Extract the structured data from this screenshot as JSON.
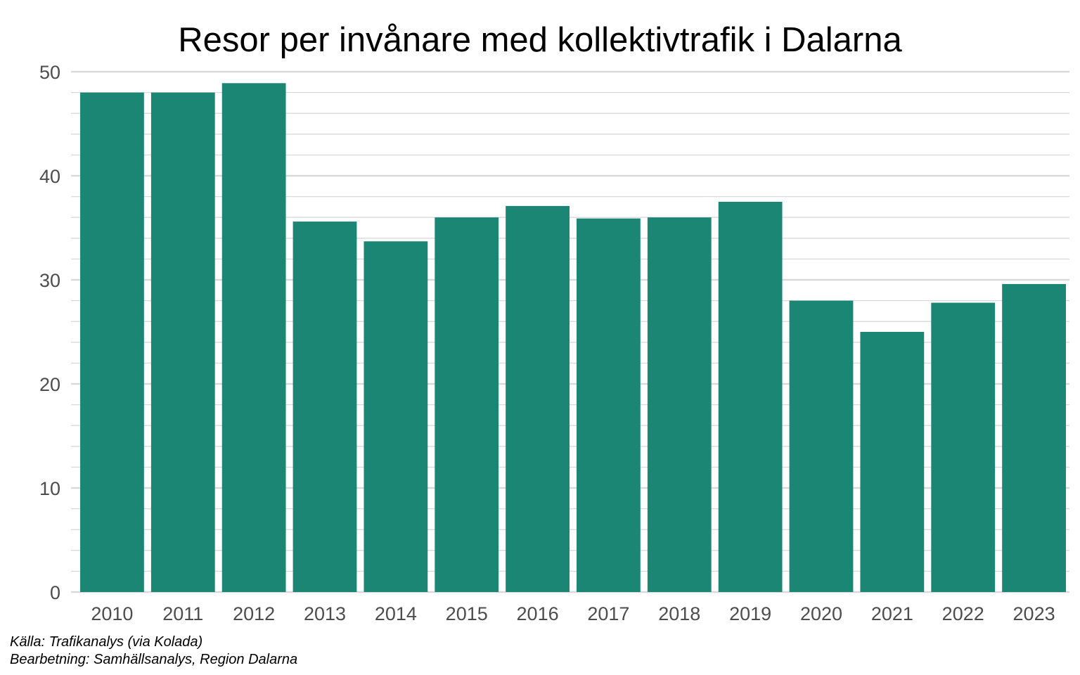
{
  "chart_data": {
    "type": "bar",
    "title": "Resor per invånare med kollektivtrafik i Dalarna",
    "xlabel": "",
    "ylabel": "",
    "categories": [
      "2010",
      "2011",
      "2012",
      "2013",
      "2014",
      "2015",
      "2016",
      "2017",
      "2018",
      "2019",
      "2020",
      "2021",
      "2022",
      "2023"
    ],
    "values": [
      48.0,
      48.0,
      48.9,
      35.6,
      33.7,
      36.0,
      37.1,
      35.9,
      36.0,
      37.5,
      28.0,
      25.0,
      27.8,
      29.6
    ],
    "ylim": [
      0,
      50
    ],
    "yticks": [
      0,
      10,
      20,
      30,
      40,
      50
    ],
    "grid": true,
    "bar_color": "#1a8673",
    "grid_color": "#d9d9d9"
  },
  "captions": {
    "source": "Källa: Trafikanalys (via Kolada)",
    "processing": "Bearbetning: Samhällsanalys, Region Dalarna"
  }
}
